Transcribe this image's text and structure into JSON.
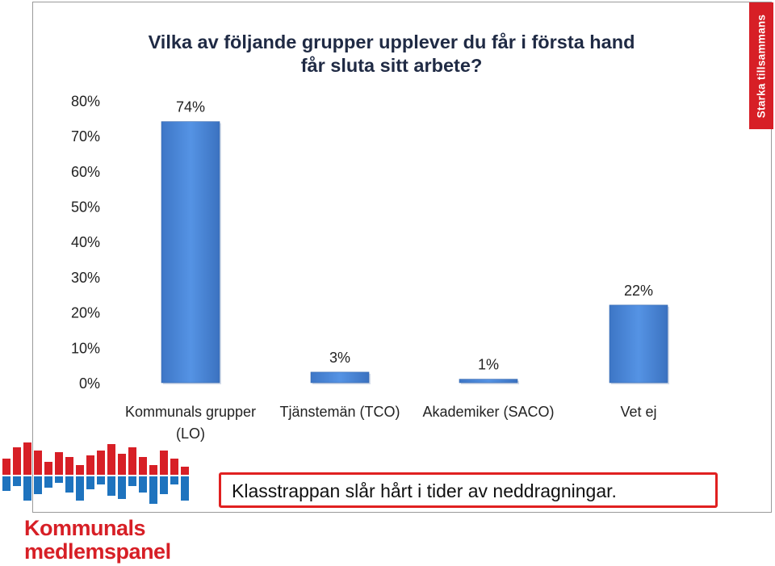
{
  "title_line1": "Vilka av följande grupper upplever du får i första hand",
  "title_line2": "får sluta sitt arbete?",
  "brand_tab": "Starka tillsammans",
  "callout": "Klasstrappan slår hårt i tider av neddragningar.",
  "logo": {
    "line1": "Kommunals",
    "line2": "medlemspanel"
  },
  "colors": {
    "bar": "#4a86d8",
    "brand_red": "#d71f26",
    "logo_blue": "#1e73be"
  },
  "chart_data": {
    "type": "bar",
    "categories": [
      {
        "line1": "Kommunals grupper",
        "line2": "(LO)"
      },
      {
        "line1": "Tjänstemän (TCO)",
        "line2": ""
      },
      {
        "line1": "Akademiker (SACO)",
        "line2": ""
      },
      {
        "line1": "Vet ej",
        "line2": ""
      }
    ],
    "values": [
      74,
      3,
      1,
      22
    ],
    "data_labels": [
      "74%",
      "3%",
      "1%",
      "22%"
    ],
    "y_ticks": [
      "0%",
      "10%",
      "20%",
      "30%",
      "40%",
      "50%",
      "60%",
      "70%",
      "80%"
    ],
    "ylim": [
      0,
      80
    ],
    "grid": false,
    "legend": "none"
  }
}
